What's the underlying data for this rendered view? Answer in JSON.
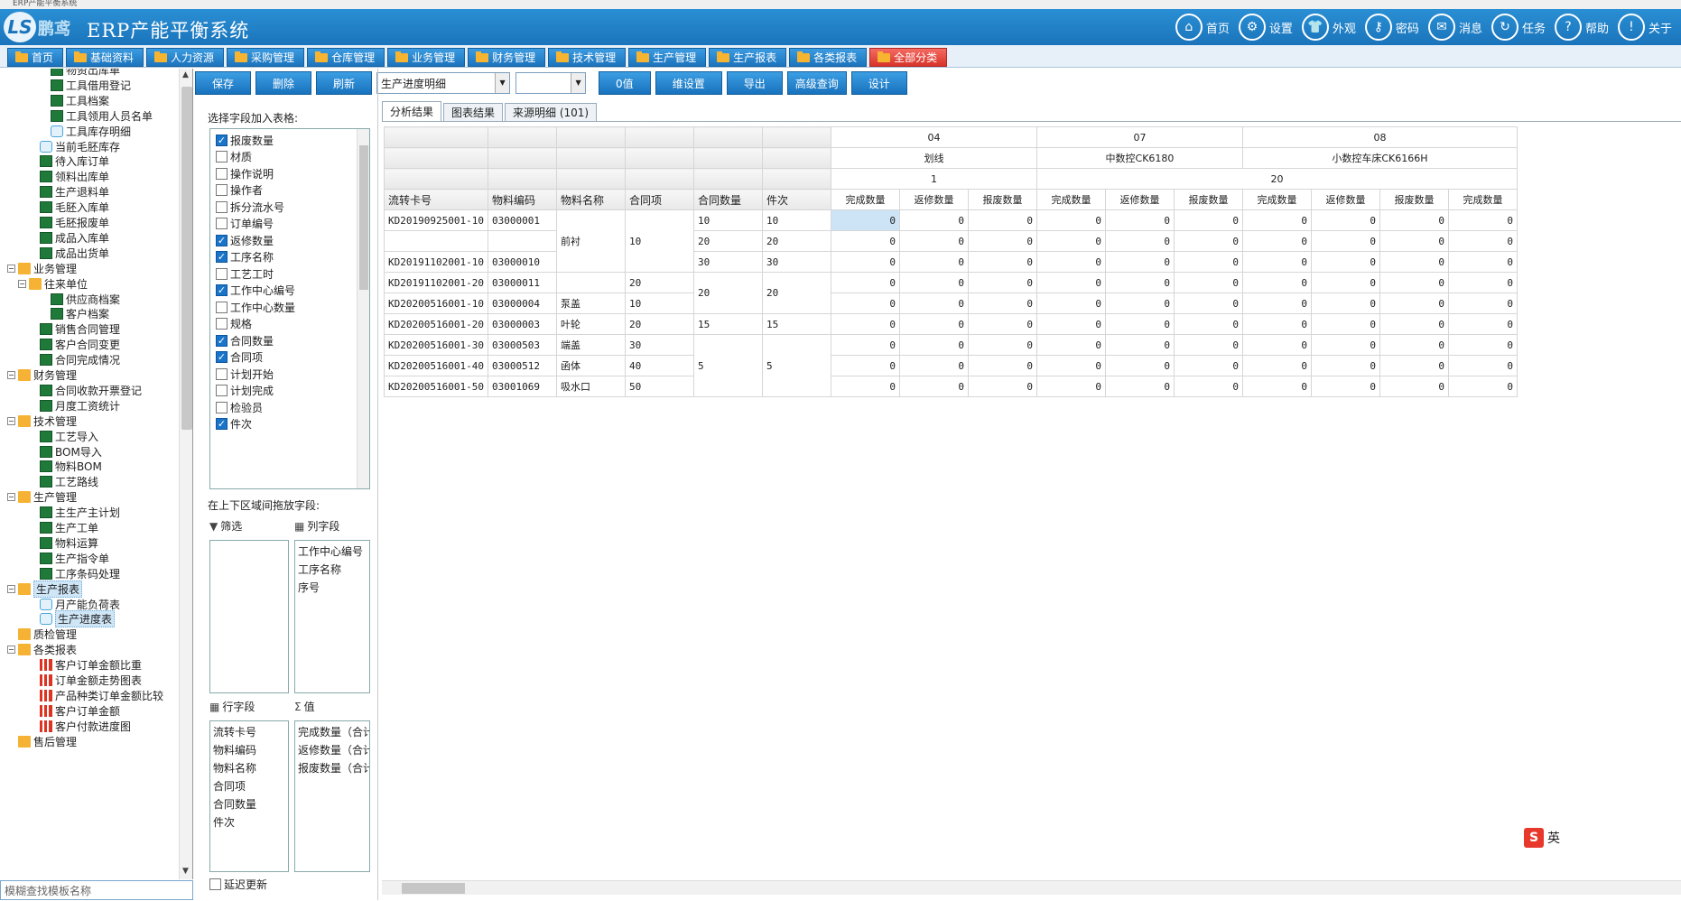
{
  "window": {
    "title": "ERP产能平衡系统"
  },
  "header": {
    "logo_text": "LS",
    "logo_cn": "鹏鸢",
    "title": "ERP产能平衡系统"
  },
  "topnav": [
    {
      "label": "首页",
      "icon": "home-icon",
      "glyph": "⌂"
    },
    {
      "label": "设置",
      "icon": "gear-icon",
      "glyph": "⚙"
    },
    {
      "label": "外观",
      "icon": "shirt-icon",
      "glyph": "👕"
    },
    {
      "label": "密码",
      "icon": "key-icon",
      "glyph": "⚷"
    },
    {
      "label": "消息",
      "icon": "mail-icon",
      "glyph": "✉"
    },
    {
      "label": "任务",
      "icon": "task-icon",
      "glyph": "↻"
    },
    {
      "label": "帮助",
      "icon": "help-icon",
      "glyph": "?"
    },
    {
      "label": "关于",
      "icon": "info-icon",
      "glyph": "!"
    }
  ],
  "menubar": [
    {
      "label": "首页",
      "home": true
    },
    {
      "label": "基础资料"
    },
    {
      "label": "人力资源"
    },
    {
      "label": "采购管理"
    },
    {
      "label": "仓库管理"
    },
    {
      "label": "业务管理"
    },
    {
      "label": "财务管理"
    },
    {
      "label": "技术管理"
    },
    {
      "label": "生产管理"
    },
    {
      "label": "生产报表"
    },
    {
      "label": "各类报表"
    },
    {
      "label": "全部分类",
      "red": true
    }
  ],
  "tree": [
    {
      "label": "物资出库单",
      "level": 3,
      "icon": "xl"
    },
    {
      "label": "工具借用登记",
      "level": 3,
      "icon": "xl"
    },
    {
      "label": "工具档案",
      "level": 3,
      "icon": "xl"
    },
    {
      "label": "工具领用人员名单",
      "level": 3,
      "icon": "xl"
    },
    {
      "label": "工具库存明细",
      "level": 3,
      "icon": "sr"
    },
    {
      "label": "当前毛胚库存",
      "level": 2,
      "icon": "sr"
    },
    {
      "label": "待入库订单",
      "level": 2,
      "icon": "xl"
    },
    {
      "label": "领料出库单",
      "level": 2,
      "icon": "xl"
    },
    {
      "label": "生产退料单",
      "level": 2,
      "icon": "xl"
    },
    {
      "label": "毛胚入库单",
      "level": 2,
      "icon": "xl"
    },
    {
      "label": "毛胚报废单",
      "level": 2,
      "icon": "xl"
    },
    {
      "label": "成品入库单",
      "level": 2,
      "icon": "xl"
    },
    {
      "label": "成品出货单",
      "level": 2,
      "icon": "xl"
    },
    {
      "label": "业务管理",
      "level": 0,
      "icon": "fd",
      "exp": "−"
    },
    {
      "label": "往来单位",
      "level": 1,
      "icon": "fd",
      "exp": "−"
    },
    {
      "label": "供应商档案",
      "level": 3,
      "icon": "xl"
    },
    {
      "label": "客户档案",
      "level": 3,
      "icon": "xl"
    },
    {
      "label": "销售合同管理",
      "level": 2,
      "icon": "xl"
    },
    {
      "label": "客户合同变更",
      "level": 2,
      "icon": "xl"
    },
    {
      "label": "合同完成情况",
      "level": 2,
      "icon": "xl"
    },
    {
      "label": "财务管理",
      "level": 0,
      "icon": "fd",
      "exp": "−"
    },
    {
      "label": "合同收款开票登记",
      "level": 2,
      "icon": "xl"
    },
    {
      "label": "月度工资统计",
      "level": 2,
      "icon": "xl"
    },
    {
      "label": "技术管理",
      "level": 0,
      "icon": "fd",
      "exp": "−"
    },
    {
      "label": "工艺导入",
      "level": 2,
      "icon": "xl"
    },
    {
      "label": "BOM导入",
      "level": 2,
      "icon": "xl"
    },
    {
      "label": "物料BOM",
      "level": 2,
      "icon": "xl"
    },
    {
      "label": "工艺路线",
      "level": 2,
      "icon": "xl"
    },
    {
      "label": "生产管理",
      "level": 0,
      "icon": "fd",
      "exp": "−"
    },
    {
      "label": "主生产主计划",
      "level": 2,
      "icon": "xl"
    },
    {
      "label": "生产工单",
      "level": 2,
      "icon": "xl"
    },
    {
      "label": "物料运算",
      "level": 2,
      "icon": "xl"
    },
    {
      "label": "生产指令单",
      "level": 2,
      "icon": "xl"
    },
    {
      "label": "工序条码处理",
      "level": 2,
      "icon": "xl"
    },
    {
      "label": "生产报表",
      "level": 0,
      "icon": "fd",
      "exp": "−",
      "sel": true
    },
    {
      "label": "月产能负荷表",
      "level": 2,
      "icon": "sr"
    },
    {
      "label": "生产进度表",
      "level": 2,
      "icon": "sr",
      "sel": true
    },
    {
      "label": "质检管理",
      "level": 0,
      "icon": "fd"
    },
    {
      "label": "各类报表",
      "level": 0,
      "icon": "fd",
      "exp": "−"
    },
    {
      "label": "客户订单金额比重",
      "level": 2,
      "icon": "ch"
    },
    {
      "label": "订单金额走势图表",
      "level": 2,
      "icon": "ch"
    },
    {
      "label": "产品种类订单金额比较",
      "level": 2,
      "icon": "ch"
    },
    {
      "label": "客户订单金额",
      "level": 2,
      "icon": "ch"
    },
    {
      "label": "客户付款进度图",
      "level": 2,
      "icon": "ch"
    },
    {
      "label": "售后管理",
      "level": 0,
      "icon": "fd"
    }
  ],
  "tree_search": {
    "placeholder": "模糊查找模板名称"
  },
  "toolbar": {
    "save": "保存",
    "delete": "删除",
    "refresh": "刷新",
    "report_select": "生产进度明细",
    "second_select": "",
    "zero": "0值",
    "dim_setting": "维设置",
    "export": "导出",
    "advanced_query": "高级查询",
    "design": "设计"
  },
  "fieldpanel": {
    "title": "选择字段加入表格:",
    "fields": [
      {
        "label": "报废数量",
        "checked": true
      },
      {
        "label": "材质",
        "checked": false
      },
      {
        "label": "操作说明",
        "checked": false
      },
      {
        "label": "操作者",
        "checked": false
      },
      {
        "label": "拆分流水号",
        "checked": false
      },
      {
        "label": "订单编号",
        "checked": false
      },
      {
        "label": "返修数量",
        "checked": true
      },
      {
        "label": "工序名称",
        "checked": true
      },
      {
        "label": "工艺工时",
        "checked": false
      },
      {
        "label": "工作中心编号",
        "checked": true
      },
      {
        "label": "工作中心数量",
        "checked": false
      },
      {
        "label": "规格",
        "checked": false
      },
      {
        "label": "合同数量",
        "checked": true
      },
      {
        "label": "合同项",
        "checked": true
      },
      {
        "label": "计划开始",
        "checked": false
      },
      {
        "label": "计划完成",
        "checked": false
      },
      {
        "label": "检验员",
        "checked": false
      },
      {
        "label": "件次",
        "checked": true
      }
    ],
    "drag_title": "在上下区域间拖放字段:",
    "filter_label": "筛选",
    "column_label": "列字段",
    "row_label": "行字段",
    "value_label": "值",
    "filter_fields": [],
    "column_fields": [
      "工作中心编号",
      "工序名称",
      "序号"
    ],
    "row_fields": [
      "流转卡号",
      "物料编码",
      "物料名称",
      "合同项",
      "合同数量",
      "件次"
    ],
    "value_fields": [
      "完成数量（合计）",
      "返修数量（合计）",
      "报废数量（合计）"
    ],
    "delay_update": "延迟更新"
  },
  "tabs": [
    {
      "label": "分析结果",
      "active": true
    },
    {
      "label": "图表结果"
    },
    {
      "label": "来源明细 (101)"
    }
  ],
  "grid": {
    "centers": [
      "04",
      "07",
      "08"
    ],
    "processes": [
      "划线",
      "中数控CK6180",
      "小数控车床CK6166H"
    ],
    "seq": [
      "1",
      "20"
    ],
    "row_headers": [
      "流转卡号",
      "物料编码",
      "物料名称",
      "合同项",
      "合同数量",
      "件次"
    ],
    "value_headers": [
      "完成数量",
      "返修数量",
      "报废数量"
    ],
    "rows": [
      {
        "card": "KD20190925001-10",
        "code": "03000001",
        "name": "前衬",
        "item": "10",
        "qty": "10",
        "cnt": "10"
      },
      {
        "card": "",
        "code": "",
        "name": "",
        "item": "",
        "qty": "20",
        "cnt": "20"
      },
      {
        "card": "KD20191102001-10",
        "code": "03000010",
        "name": "",
        "item": "",
        "qty": "30",
        "cnt": "30"
      },
      {
        "card": "KD20191102001-20",
        "code": "03000011",
        "name": "",
        "item": "20",
        "qty": "20",
        "cnt": "20"
      },
      {
        "card": "KD20200516001-10",
        "code": "03000004",
        "name": "泵盖",
        "item": "10",
        "qty": "",
        "cnt": ""
      },
      {
        "card": "KD20200516001-20",
        "code": "03000003",
        "name": "叶轮",
        "item": "20",
        "qty": "15",
        "cnt": "15"
      },
      {
        "card": "KD20200516001-30",
        "code": "03000503",
        "name": "端盖",
        "item": "30",
        "qty": "5",
        "cnt": "5"
      },
      {
        "card": "KD20200516001-40",
        "code": "03000512",
        "name": "函体",
        "item": "40",
        "qty": "",
        "cnt": ""
      },
      {
        "card": "KD20200516001-50",
        "code": "03001069",
        "name": "吸水口",
        "item": "50",
        "qty": "",
        "cnt": ""
      }
    ],
    "cell_value": "0"
  },
  "ime": {
    "label": "英"
  }
}
